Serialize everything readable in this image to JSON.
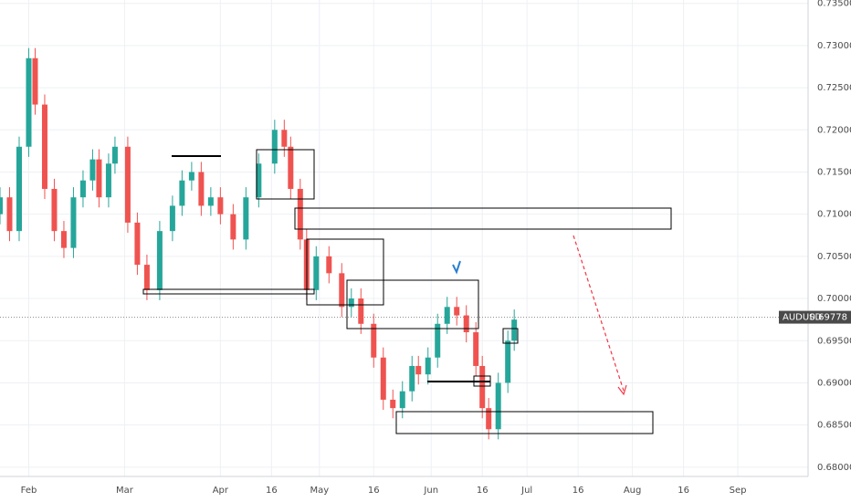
{
  "chart_data": {
    "type": "candlestick",
    "symbol": "AUDUSD",
    "last_price": 0.69778,
    "up_color": "#26a69a",
    "down_color": "#ef5350",
    "grid": true,
    "xlim": [
      0,
      253
    ],
    "ylim": [
      0.6789,
      0.7354
    ],
    "xticks": [
      {
        "value": 9,
        "label": "Feb"
      },
      {
        "value": 39,
        "label": "Mar"
      },
      {
        "value": 69,
        "label": "Apr"
      },
      {
        "value": 85,
        "label": "16"
      },
      {
        "value": 100,
        "label": "May"
      },
      {
        "value": 117,
        "label": "16"
      },
      {
        "value": 135,
        "label": "Jun"
      },
      {
        "value": 151,
        "label": "16"
      },
      {
        "value": 165,
        "label": "Jul"
      },
      {
        "value": 181,
        "label": "16"
      },
      {
        "value": 198,
        "label": "Aug"
      },
      {
        "value": 214,
        "label": "16"
      },
      {
        "value": 231,
        "label": "Sep"
      }
    ],
    "yticks": [
      {
        "value": 0.68,
        "label": "0.68000"
      },
      {
        "value": 0.685,
        "label": "0.68500"
      },
      {
        "value": 0.69,
        "label": "0.69000"
      },
      {
        "value": 0.695,
        "label": "0.69500"
      },
      {
        "value": 0.7,
        "label": "0.70000"
      },
      {
        "value": 0.705,
        "label": "0.70500"
      },
      {
        "value": 0.71,
        "label": "0.71000"
      },
      {
        "value": 0.715,
        "label": "0.71500"
      },
      {
        "value": 0.72,
        "label": "0.72000"
      },
      {
        "value": 0.725,
        "label": "0.72500"
      },
      {
        "value": 0.73,
        "label": "0.73000"
      },
      {
        "value": 0.735,
        "label": "0.73500"
      }
    ],
    "x": [
      0,
      3,
      6,
      9,
      11,
      14,
      17,
      20,
      23,
      26,
      29,
      31,
      34,
      36,
      40,
      43,
      46,
      50,
      54,
      57,
      60,
      63,
      66,
      69,
      73,
      77,
      81,
      86,
      89,
      91,
      94,
      96,
      99,
      103,
      107,
      110,
      113,
      117,
      120,
      123,
      126,
      129,
      131,
      134,
      137,
      140,
      143,
      146,
      149,
      151,
      153,
      156,
      159,
      161
    ],
    "open": [
      0.71,
      0.712,
      0.708,
      0.718,
      0.7285,
      0.723,
      0.713,
      0.708,
      0.706,
      0.712,
      0.714,
      0.7165,
      0.712,
      0.716,
      0.718,
      0.709,
      0.704,
      0.701,
      0.708,
      0.711,
      0.714,
      0.715,
      0.711,
      0.712,
      0.71,
      0.707,
      0.712,
      0.716,
      0.72,
      0.718,
      0.713,
      0.707,
      0.701,
      0.705,
      0.703,
      0.699,
      0.7,
      0.697,
      0.693,
      0.688,
      0.687,
      0.689,
      0.692,
      0.691,
      0.693,
      0.697,
      0.699,
      0.698,
      0.696,
      0.692,
      0.687,
      0.6845,
      0.69,
      0.695
    ],
    "high": [
      0.7132,
      0.7132,
      0.7192,
      0.7297,
      0.7297,
      0.7242,
      0.7142,
      0.7092,
      0.7132,
      0.7152,
      0.7177,
      0.7177,
      0.7172,
      0.7192,
      0.7192,
      0.7102,
      0.7052,
      0.7092,
      0.7122,
      0.7152,
      0.7162,
      0.7162,
      0.7132,
      0.7132,
      0.7112,
      0.7132,
      0.7172,
      0.7212,
      0.7212,
      0.7192,
      0.7142,
      0.7082,
      0.7062,
      0.7062,
      0.7042,
      0.7012,
      0.7012,
      0.6982,
      0.6942,
      0.6892,
      0.6902,
      0.6932,
      0.6932,
      0.6942,
      0.6982,
      0.7002,
      0.7002,
      0.6992,
      0.6972,
      0.6932,
      0.6882,
      0.6912,
      0.6962,
      0.6987
    ],
    "low": [
      0.7088,
      0.7068,
      0.7068,
      0.7168,
      0.7218,
      0.7118,
      0.7068,
      0.7048,
      0.7048,
      0.7108,
      0.7128,
      0.7108,
      0.7108,
      0.7148,
      0.7078,
      0.7028,
      0.6998,
      0.6998,
      0.7068,
      0.7098,
      0.7128,
      0.7098,
      0.7098,
      0.7088,
      0.7058,
      0.7058,
      0.7108,
      0.7148,
      0.7168,
      0.7118,
      0.7058,
      0.6998,
      0.6998,
      0.7018,
      0.6978,
      0.6978,
      0.6958,
      0.6918,
      0.6868,
      0.6858,
      0.6858,
      0.6878,
      0.6898,
      0.6898,
      0.6918,
      0.6958,
      0.6968,
      0.6948,
      0.6908,
      0.6858,
      0.6833,
      0.6833,
      0.6888,
      0.6938
    ],
    "close": [
      0.712,
      0.708,
      0.718,
      0.7285,
      0.723,
      0.713,
      0.708,
      0.706,
      0.712,
      0.714,
      0.7165,
      0.712,
      0.716,
      0.718,
      0.709,
      0.704,
      0.701,
      0.708,
      0.711,
      0.714,
      0.715,
      0.711,
      0.712,
      0.71,
      0.707,
      0.712,
      0.716,
      0.72,
      0.718,
      0.713,
      0.707,
      0.701,
      0.705,
      0.703,
      0.699,
      0.7,
      0.697,
      0.693,
      0.688,
      0.687,
      0.689,
      0.692,
      0.691,
      0.693,
      0.697,
      0.699,
      0.698,
      0.696,
      0.692,
      0.687,
      0.6845,
      0.69,
      0.695,
      0.6975
    ]
  }
}
